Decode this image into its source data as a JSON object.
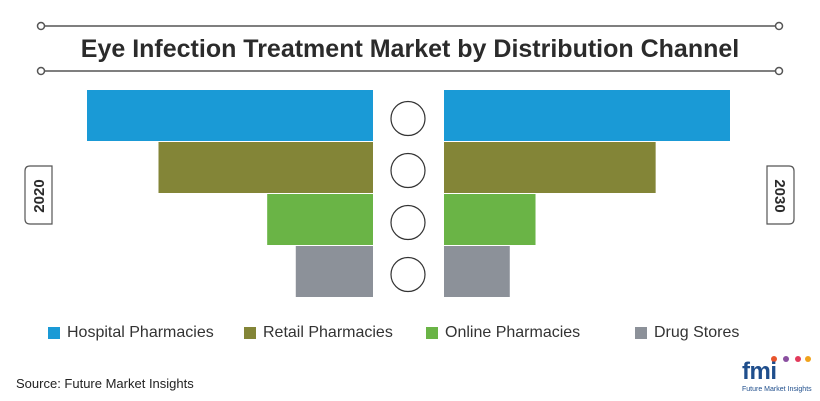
{
  "chart_data": {
    "type": "bar",
    "title": "Eye Infection Treatment Market by Distribution Channel",
    "categories": [
      "Hospital Pharmacies",
      "Retail Pharmacies",
      "Online Pharmacies",
      "Drug Stores"
    ],
    "series": [
      {
        "name": "2020",
        "values": [
          100,
          75,
          37,
          27
        ]
      },
      {
        "name": "2030",
        "values": [
          100,
          74,
          32,
          23
        ]
      }
    ],
    "colors": [
      "#1a9ad6",
      "#838537",
      "#6ab446",
      "#8c9199"
    ]
  },
  "year_left": "2020",
  "year_right": "2030",
  "source": "Source: Future Market Insights",
  "logo": {
    "mark": "fmi",
    "subtitle": "Future Market Insights"
  }
}
